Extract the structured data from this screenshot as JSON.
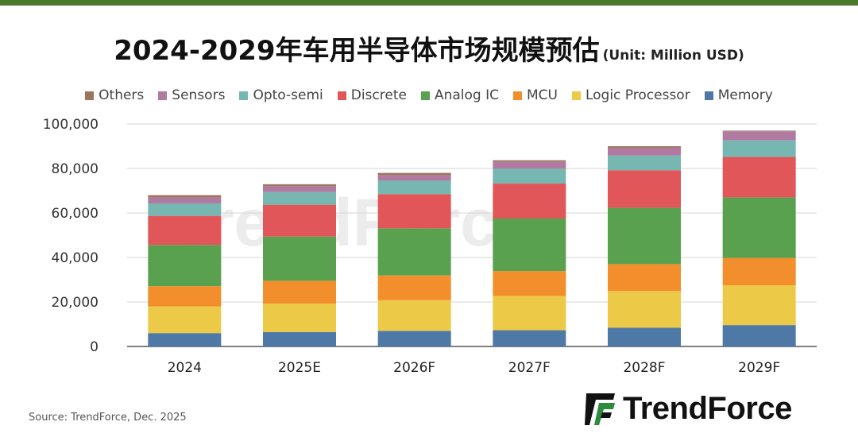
{
  "title": "2024-2029年车用半导体市场规模预估",
  "unit": "(Unit: Million USD)",
  "source": "Source: TrendForce, Dec.  2025",
  "logo_text": "TrendForce",
  "watermark": "TrendForce",
  "chart_data": {
    "type": "bar",
    "stacked": true,
    "categories": [
      "2024",
      "2025E",
      "2026F",
      "2027F",
      "2028F",
      "2029F"
    ],
    "ylim": [
      0,
      100000
    ],
    "yticks": [
      0,
      20000,
      40000,
      60000,
      80000,
      100000
    ],
    "ytick_labels": [
      "0",
      "20,000",
      "40,000",
      "60,000",
      "80,000",
      "100,000"
    ],
    "grid": true,
    "legend_position": "top",
    "legend_order": [
      "Others",
      "Sensors",
      "Opto-semi",
      "Discrete",
      "Analog IC",
      "MCU",
      "Logic Processor",
      "Memory"
    ],
    "series": [
      {
        "name": "Memory",
        "color": "#4e79a7",
        "values": [
          6000,
          6500,
          7000,
          7300,
          8400,
          9600
        ]
      },
      {
        "name": "Logic Processor",
        "color": "#edc948",
        "values": [
          12000,
          12800,
          13800,
          15400,
          16500,
          17900
        ]
      },
      {
        "name": "MCU",
        "color": "#f28e2b",
        "values": [
          9100,
          10200,
          11100,
          11200,
          12100,
          12300
        ]
      },
      {
        "name": "Analog IC",
        "color": "#59a14f",
        "values": [
          18500,
          19900,
          21200,
          23600,
          25300,
          27200
        ]
      },
      {
        "name": "Discrete",
        "color": "#e15759",
        "values": [
          13100,
          14300,
          15400,
          15700,
          16900,
          18200
        ]
      },
      {
        "name": "Opto-semi",
        "color": "#76b7b2",
        "values": [
          5600,
          5700,
          6000,
          6700,
          6600,
          7400
        ]
      },
      {
        "name": "Sensors",
        "color": "#b07aa1",
        "values": [
          2700,
          2700,
          2500,
          3200,
          3500,
          4100
        ]
      },
      {
        "name": "Others",
        "color": "#9c755f",
        "values": [
          1000,
          800,
          1000,
          600,
          700,
          300
        ]
      }
    ]
  }
}
